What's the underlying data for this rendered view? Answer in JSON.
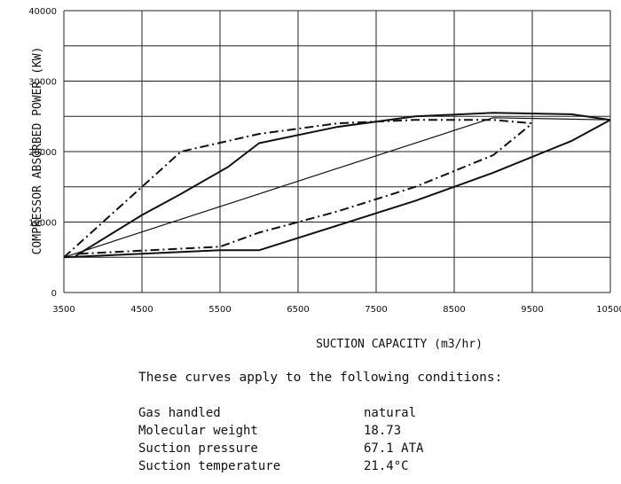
{
  "chart_data": {
    "type": "line",
    "title": "",
    "xlabel": "SUCTION CAPACITY (m3/hr)",
    "ylabel": "COMPRESSOR ABSORBED POWER (KW)",
    "xlim": [
      3500,
      10500
    ],
    "ylim": [
      0,
      40000
    ],
    "x_ticks": [
      "3500",
      "4500",
      "5500",
      "6500",
      "7500",
      "8500",
      "9500",
      "10500"
    ],
    "y_ticks": [
      "0",
      "10000",
      "20000",
      "30000",
      "40000"
    ],
    "grid": true,
    "series": [
      {
        "style": "solid",
        "x": [
          3500,
          5500,
          6000,
          7000,
          8000,
          9000,
          10000,
          10500
        ],
        "y": [
          5000,
          6000,
          6000,
          9500,
          13000,
          17000,
          21500,
          24500
        ]
      },
      {
        "style": "solid",
        "x": [
          3650,
          4500,
          5000,
          5600,
          6000,
          7000,
          8000,
          9000,
          10000,
          10500
        ],
        "y": [
          5200,
          11000,
          14000,
          17800,
          21200,
          23500,
          25000,
          25500,
          25300,
          24500
        ]
      },
      {
        "style": "dash-dot",
        "x": [
          3500,
          4000,
          4500,
          5000,
          6000,
          7000,
          8000,
          9000,
          9500
        ],
        "y": [
          5000,
          10000,
          15000,
          20000,
          22500,
          24000,
          24500,
          24500,
          24000
        ]
      },
      {
        "style": "dash-dot",
        "x": [
          3700,
          5500,
          6000,
          7000,
          8000,
          9000,
          9500
        ],
        "y": [
          5500,
          6500,
          8500,
          11500,
          15000,
          19500,
          24000
        ]
      },
      {
        "style": "solid-thin",
        "x": [
          3500,
          9000,
          10500
        ],
        "y": [
          5000,
          24800,
          24500
        ]
      }
    ]
  },
  "conditions": {
    "title": "These curves apply to the following conditions:",
    "rows": [
      {
        "label": "Gas handled",
        "value": "natural"
      },
      {
        "label": "Molecular weight",
        "value": "18.73"
      },
      {
        "label": "Suction pressure",
        "value": "67.1 ATA"
      },
      {
        "label": "Suction temperature",
        "value": "21.4°C"
      }
    ]
  }
}
